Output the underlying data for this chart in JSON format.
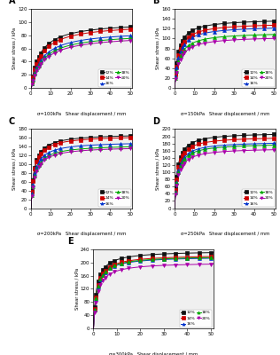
{
  "panels": [
    {
      "label": "A",
      "sigma": "σ=100kPa",
      "ylim": [
        0,
        120
      ],
      "yticks": [
        0,
        20,
        40,
        60,
        80,
        100,
        120
      ],
      "ylabel": "Shear stress / kPa"
    },
    {
      "label": "B",
      "sigma": "σ=150kPa",
      "ylim": [
        0,
        160
      ],
      "yticks": [
        0,
        20,
        40,
        60,
        80,
        100,
        120,
        140,
        160
      ],
      "ylabel": "Shear stress / kPa"
    },
    {
      "label": "C",
      "sigma": "σ=200kPa",
      "ylim": [
        0,
        180
      ],
      "yticks": [
        0,
        20,
        40,
        60,
        80,
        100,
        120,
        140,
        160,
        180
      ],
      "ylabel": "Shear stress / kPa"
    },
    {
      "label": "D",
      "sigma": "σ=250kPa",
      "ylim": [
        0,
        220
      ],
      "yticks": [
        0,
        20,
        40,
        60,
        80,
        100,
        120,
        140,
        160,
        180,
        200,
        220
      ],
      "ylabel": "Shear stress / kPa"
    },
    {
      "label": "E",
      "sigma": "σ=300kPa",
      "ylim": [
        0,
        240
      ],
      "yticks": [
        0,
        40,
        80,
        120,
        160,
        200,
        240
      ],
      "ylabel": "Shear stress / kPa"
    }
  ],
  "series": [
    {
      "label": "12%",
      "color": "#111111",
      "marker": "s",
      "mfc": "#111111"
    },
    {
      "label": "14%",
      "color": "#cc0000",
      "marker": "s",
      "mfc": "#cc0000"
    },
    {
      "label": "16%",
      "color": "#0033cc",
      "marker": "^",
      "mfc": "#0033cc"
    },
    {
      "label": "18%",
      "color": "#00aa00",
      "marker": "^",
      "mfc": "#00aa00"
    },
    {
      "label": "20%",
      "color": "#aa00aa",
      "marker": "v",
      "mfc": "#aa00aa"
    }
  ],
  "curves": {
    "A": {
      "12%": {
        "plateau": 101,
        "k": 0.22
      },
      "14%": {
        "plateau": 98,
        "k": 0.2
      },
      "16%": {
        "plateau": 88,
        "k": 0.18
      },
      "18%": {
        "plateau": 84,
        "k": 0.17
      },
      "20%": {
        "plateau": 81,
        "k": 0.16
      }
    },
    "B": {
      "12%": {
        "plateau": 140,
        "k": 0.55
      },
      "14%": {
        "plateau": 132,
        "k": 0.5
      },
      "16%": {
        "plateau": 126,
        "k": 0.48
      },
      "18%": {
        "plateau": 113,
        "k": 0.45
      },
      "20%": {
        "plateau": 105,
        "k": 0.42
      }
    },
    "C": {
      "12%": {
        "plateau": 170,
        "k": 0.6
      },
      "14%": {
        "plateau": 166,
        "k": 0.58
      },
      "16%": {
        "plateau": 152,
        "k": 0.55
      },
      "18%": {
        "plateau": 145,
        "k": 0.52
      },
      "20%": {
        "plateau": 141,
        "k": 0.5
      }
    },
    "D": {
      "12%": {
        "plateau": 211,
        "k": 0.7
      },
      "14%": {
        "plateau": 200,
        "k": 0.68
      },
      "16%": {
        "plateau": 186,
        "k": 0.65
      },
      "18%": {
        "plateau": 181,
        "k": 0.62
      },
      "20%": {
        "plateau": 168,
        "k": 0.6
      }
    },
    "E": {
      "12%": {
        "plateau": 236,
        "k": 0.75
      },
      "14%": {
        "plateau": 224,
        "k": 0.72
      },
      "16%": {
        "plateau": 219,
        "k": 0.7
      },
      "18%": {
        "plateau": 221,
        "k": 0.7
      },
      "20%": {
        "plateau": 201,
        "k": 0.65
      }
    }
  },
  "xlim": [
    0,
    51
  ],
  "xticks": [
    0,
    10,
    20,
    30,
    40,
    50
  ],
  "xlabel": "Shear displacement / mm"
}
